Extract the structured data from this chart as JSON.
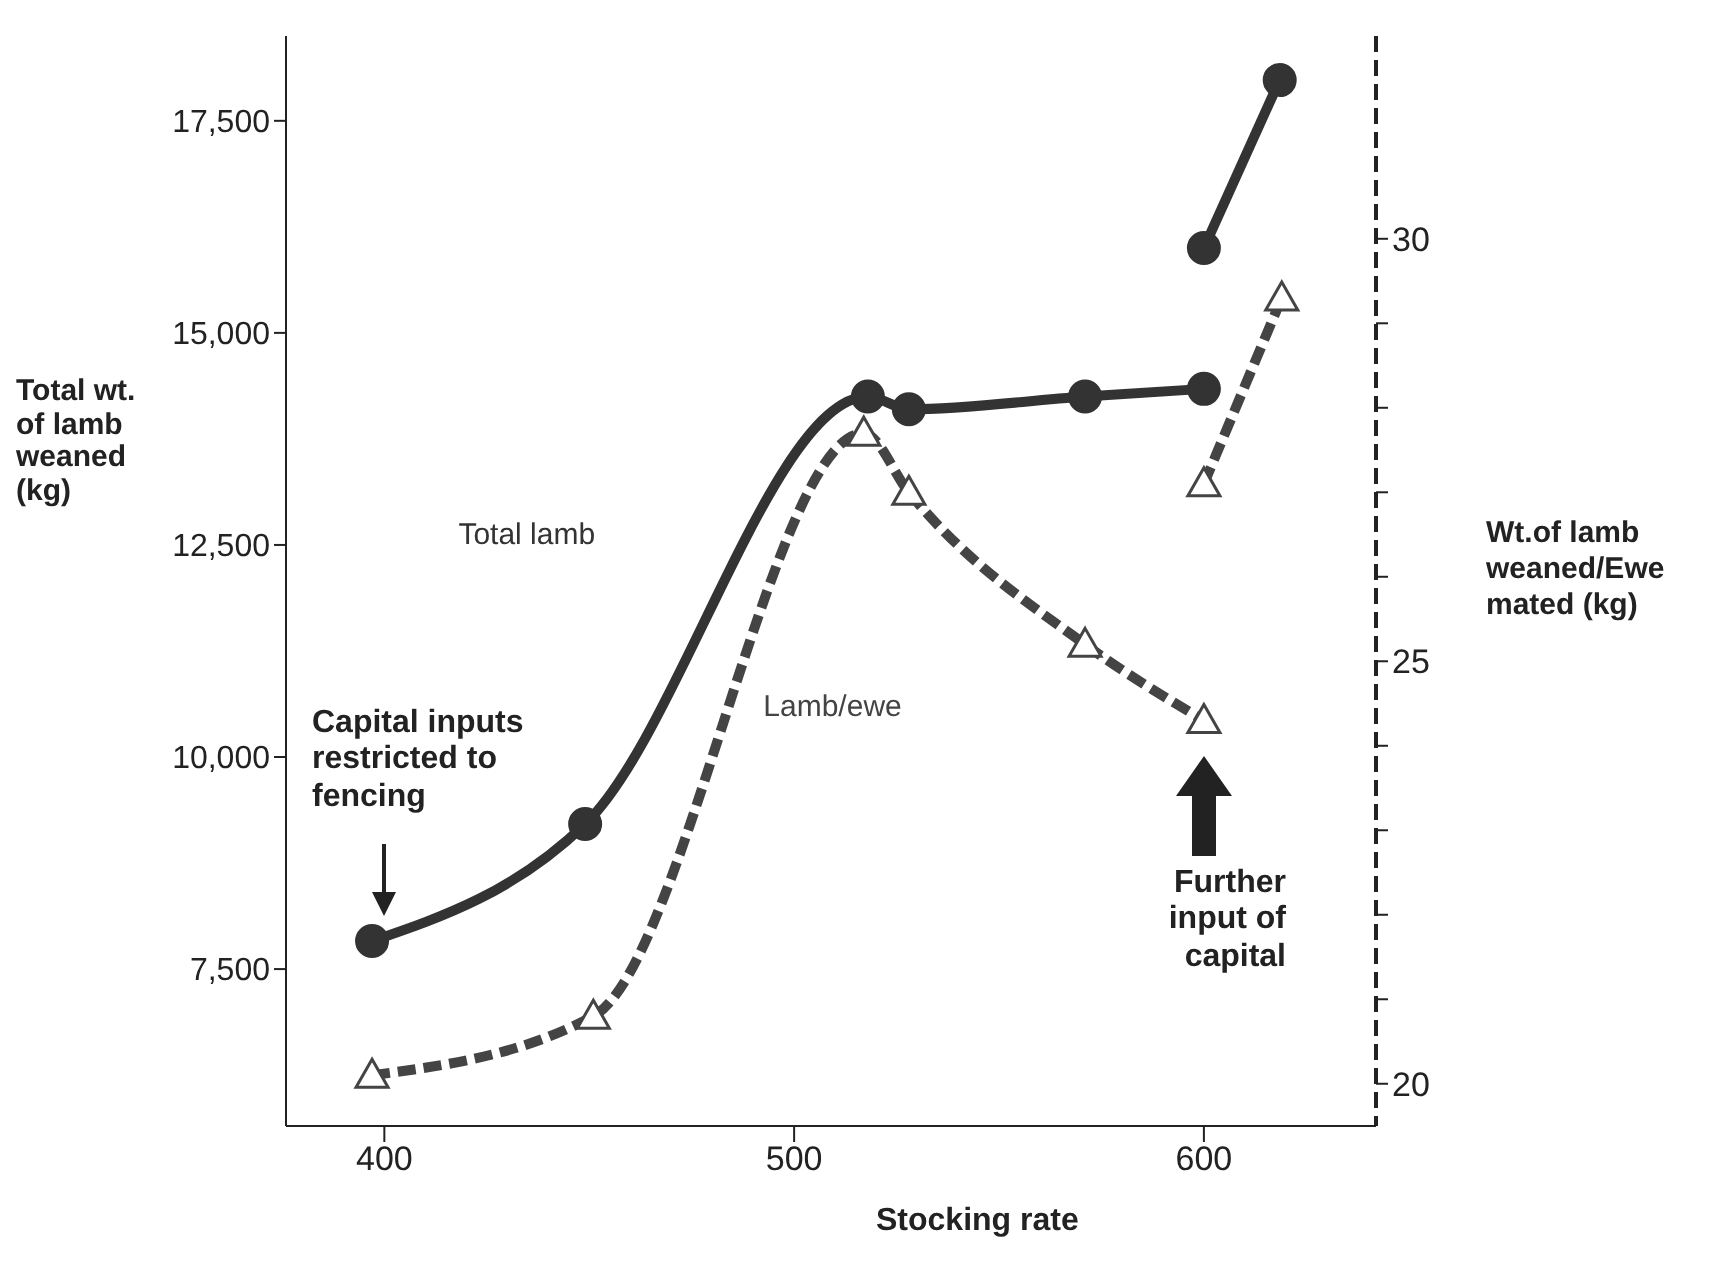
{
  "chart_data": {
    "type": "line",
    "xlabel": "Stocking rate",
    "ylabel": "Total wt. of lamb weaned (kg)",
    "y2label": "Wt.of lamb weaned/Ewe mated (kg)",
    "xlim": [
      376,
      642
    ],
    "xticks": [
      400,
      500,
      600
    ],
    "ylim": [
      5650,
      18500
    ],
    "yticks": [
      {
        "value": 7500,
        "label": "7,500"
      },
      {
        "value": 10000,
        "label": "10,000"
      },
      {
        "value": 12500,
        "label": "12,500"
      },
      {
        "value": 15000,
        "label": "15,000"
      },
      {
        "value": 17500,
        "label": "17,500"
      }
    ],
    "y2lim": [
      19.5,
      32.4
    ],
    "y2ticks": [
      20,
      {
        "value": 21,
        "label": null
      },
      {
        "value": 22,
        "label": null
      },
      {
        "value": 23,
        "label": null
      },
      {
        "value": 24,
        "label": null
      },
      25,
      {
        "value": 26,
        "label": null
      },
      {
        "value": 27,
        "label": null
      },
      {
        "value": 28,
        "label": null
      },
      {
        "value": 29,
        "label": null
      },
      30
    ],
    "grid": false,
    "legend": false,
    "series": [
      {
        "name": "Total lamb",
        "color": "#333333",
        "line_style": "solid",
        "marker": "circle",
        "x": [
          397,
          449,
          518,
          528,
          571,
          600
        ],
        "values": [
          7830,
          9210,
          14250,
          14100,
          14250,
          14340
        ]
      },
      {
        "color": "#333333",
        "line_style": "solid",
        "marker": "circle",
        "x": [
          600,
          618.5
        ],
        "values": [
          16000,
          17980
        ]
      },
      {
        "name": "Lamb/ewe",
        "color": "#444444",
        "line_style": "dashed",
        "marker": "triangle",
        "axis": "y2",
        "x": [
          397,
          451,
          517,
          528,
          571,
          600
        ],
        "values": [
          20.1,
          20.8,
          27.7,
          27.0,
          25.2,
          24.3
        ]
      },
      {
        "color": "#444444",
        "line_style": "dashed",
        "marker": "triangle",
        "axis": "y2",
        "x": [
          600,
          619
        ],
        "values": [
          27.1,
          29.3
        ]
      }
    ],
    "annotations": [
      "Capital inputs restricted to fencing",
      "Further input of capital"
    ]
  }
}
